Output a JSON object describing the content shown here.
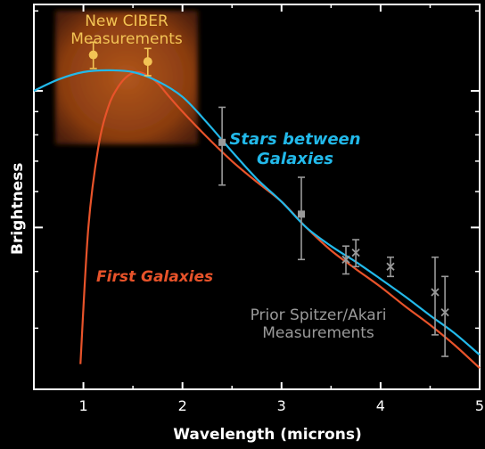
{
  "chart_data": {
    "type": "line",
    "xlabel": "Wavelength (microns)",
    "ylabel": "Brightness",
    "xlim": [
      0.5,
      5
    ],
    "ylim": [
      0.22,
      1.55
    ],
    "x_ticks": [
      "1",
      "2",
      "3",
      "4",
      "5"
    ],
    "grid": false,
    "series": [
      {
        "name": "Stars between Galaxies",
        "color": "#22b9ea",
        "x": [
          0.5,
          0.75,
          1.0,
          1.25,
          1.5,
          1.75,
          2.0,
          2.25,
          2.5,
          2.75,
          3.0,
          3.25,
          3.5,
          3.75,
          4.0,
          4.25,
          4.5,
          4.75,
          5.0
        ],
        "y": [
          1.0,
          1.06,
          1.1,
          1.11,
          1.1,
          1.05,
          0.97,
          0.85,
          0.735,
          0.64,
          0.57,
          0.5,
          0.455,
          0.42,
          0.385,
          0.352,
          0.32,
          0.292,
          0.262
        ]
      },
      {
        "name": "First Galaxies",
        "color": "#e8532a",
        "x": [
          0.97,
          1.05,
          1.15,
          1.25,
          1.35,
          1.45,
          1.55,
          1.65,
          1.75,
          1.85,
          2.0,
          2.25,
          2.5,
          2.75,
          3.0,
          3.25,
          3.5,
          3.75,
          4.0,
          4.25,
          4.5,
          4.75,
          5.0
        ],
        "y": [
          0.25,
          0.5,
          0.75,
          0.92,
          1.02,
          1.08,
          1.1,
          1.08,
          1.04,
          0.98,
          0.9,
          0.79,
          0.7,
          0.63,
          0.57,
          0.5,
          0.445,
          0.405,
          0.37,
          0.335,
          0.305,
          0.275,
          0.245
        ]
      }
    ],
    "measurements": [
      {
        "name": "New CIBER Measurements",
        "color": "#f3c455",
        "points": [
          {
            "x": 1.1,
            "y": 1.2,
            "err": 0.08,
            "marker": "circle"
          },
          {
            "x": 1.65,
            "y": 1.16,
            "err": 0.08,
            "marker": "circle"
          }
        ]
      },
      {
        "name": "Prior Spitzer/Akari Measurements",
        "color": "#9a9a9a",
        "points": [
          {
            "x": 2.4,
            "y": 0.77,
            "err": 0.15,
            "marker": "square"
          },
          {
            "x": 3.2,
            "y": 0.535,
            "err": 0.11,
            "marker": "square"
          },
          {
            "x": 3.65,
            "y": 0.425,
            "err": 0.03,
            "marker": "x"
          },
          {
            "x": 3.75,
            "y": 0.44,
            "err": 0.03,
            "marker": "x"
          },
          {
            "x": 4.1,
            "y": 0.41,
            "err": 0.02,
            "marker": "x"
          },
          {
            "x": 4.55,
            "y": 0.36,
            "err": 0.07,
            "marker": "x"
          },
          {
            "x": 4.65,
            "y": 0.325,
            "err": 0.065,
            "marker": "x"
          }
        ]
      }
    ],
    "annotations": {
      "ciber": "New CIBER Measurements",
      "stars": "Stars between Galaxies",
      "first": "First Galaxies",
      "prior": "Prior Spitzer/Akari Measurements"
    }
  }
}
